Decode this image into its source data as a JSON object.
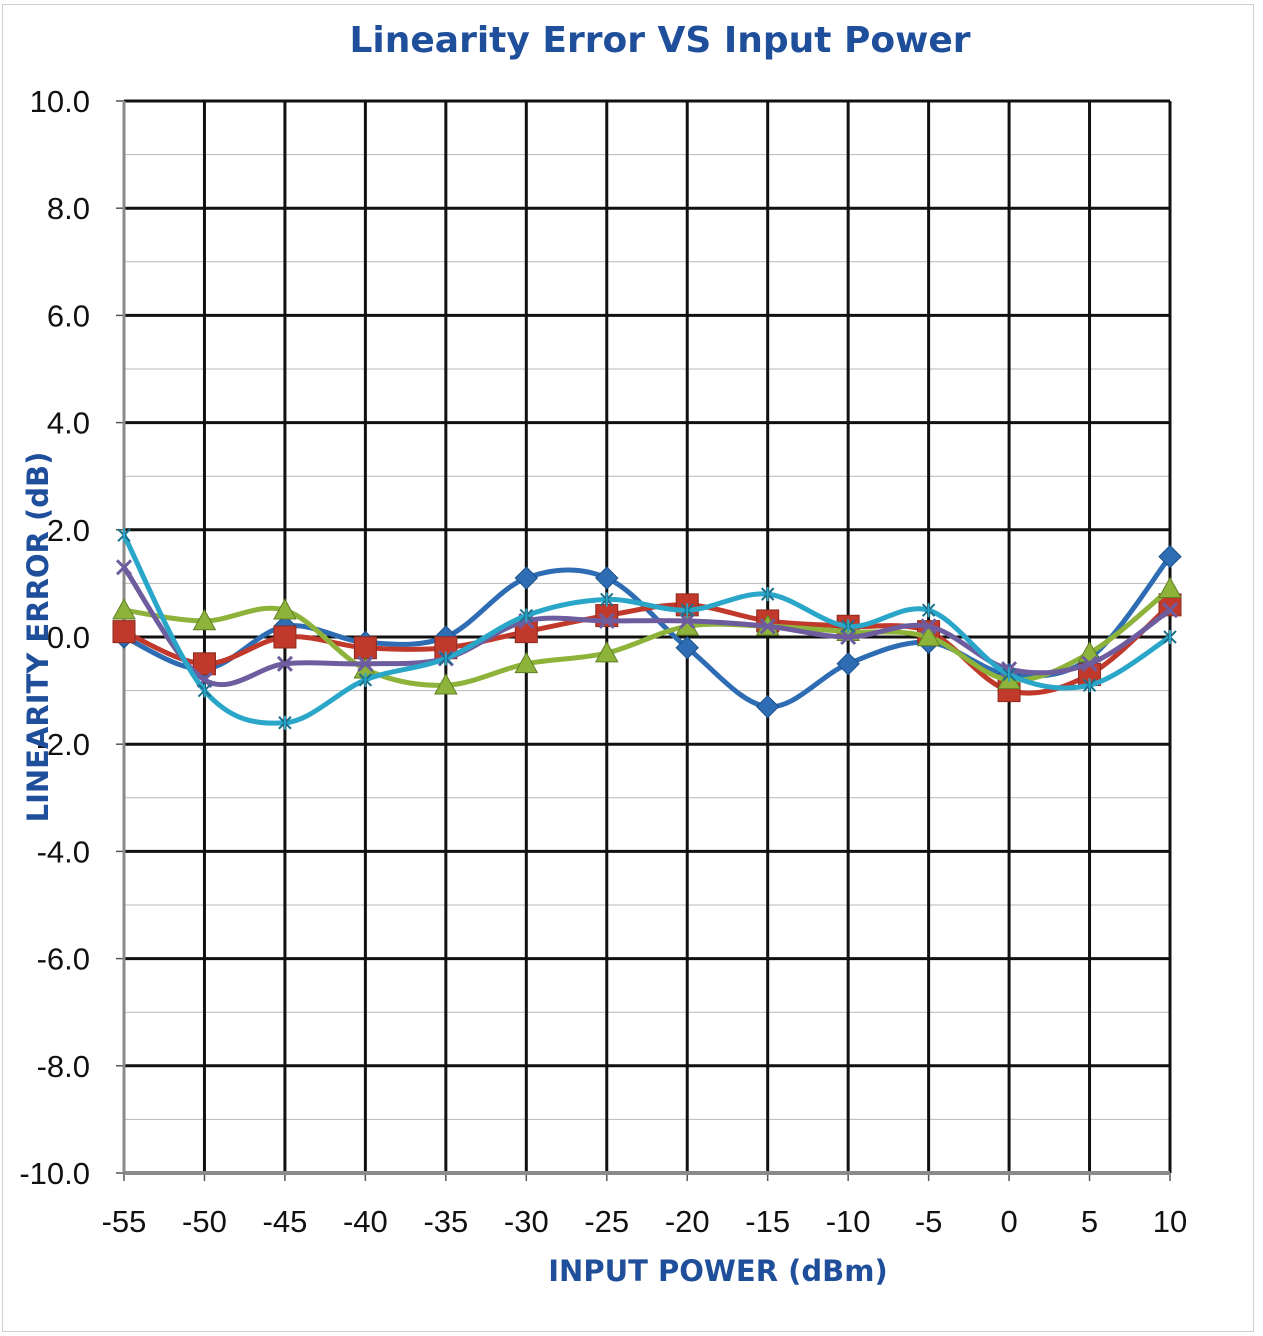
{
  "chart_data": {
    "type": "line",
    "title": "Linearity Error VS Input Power",
    "xlabel": "INPUT POWER (dBm)",
    "ylabel": "LINEARITY ERROR (dB)",
    "x": [
      -55,
      -50,
      -45,
      -40,
      -35,
      -30,
      -25,
      -20,
      -15,
      -10,
      -5,
      0,
      5,
      10
    ],
    "xlim": [
      -55,
      10
    ],
    "ylim": [
      -10,
      10
    ],
    "y_ticks": [
      "10.0",
      "8.0",
      "6.0",
      "4.0",
      "2.0",
      "0.0",
      "-2.0",
      "-4.0",
      "-6.0",
      "-8.0",
      "-10.0"
    ],
    "x_ticks": [
      "-55",
      "-50",
      "-45",
      "-40",
      "-35",
      "-30",
      "-25",
      "-20",
      "-15",
      "-10",
      "-5",
      "0",
      "5",
      "10"
    ],
    "grid": true,
    "legend": "none",
    "series": [
      {
        "color": "#2e6db4",
        "marker": "diamond",
        "values": [
          0.0,
          -0.6,
          0.2,
          -0.1,
          0.0,
          1.1,
          1.1,
          -0.2,
          -1.3,
          -0.5,
          -0.1,
          -0.7,
          -0.4,
          1.5
        ]
      },
      {
        "color": "#c0392b",
        "marker": "square",
        "values": [
          0.1,
          -0.5,
          0.0,
          -0.2,
          -0.2,
          0.1,
          0.4,
          0.6,
          0.3,
          0.2,
          0.1,
          -1.0,
          -0.7,
          0.6
        ]
      },
      {
        "color": "#8db33a",
        "marker": "triangle",
        "values": [
          0.5,
          0.3,
          0.5,
          -0.6,
          -0.9,
          -0.5,
          -0.3,
          0.2,
          0.2,
          0.1,
          0.0,
          -0.8,
          -0.3,
          0.9
        ]
      },
      {
        "color": "#6e5d9e",
        "marker": "x",
        "values": [
          1.3,
          -0.8,
          -0.5,
          -0.5,
          -0.4,
          0.3,
          0.3,
          0.3,
          0.2,
          0.0,
          0.2,
          -0.6,
          -0.5,
          0.5
        ]
      },
      {
        "color": "#2aa6c8",
        "marker": "star",
        "values": [
          1.9,
          -1.0,
          -1.6,
          -0.8,
          -0.4,
          0.4,
          0.7,
          0.5,
          0.8,
          0.2,
          0.5,
          -0.7,
          -0.9,
          0.0
        ]
      }
    ]
  }
}
